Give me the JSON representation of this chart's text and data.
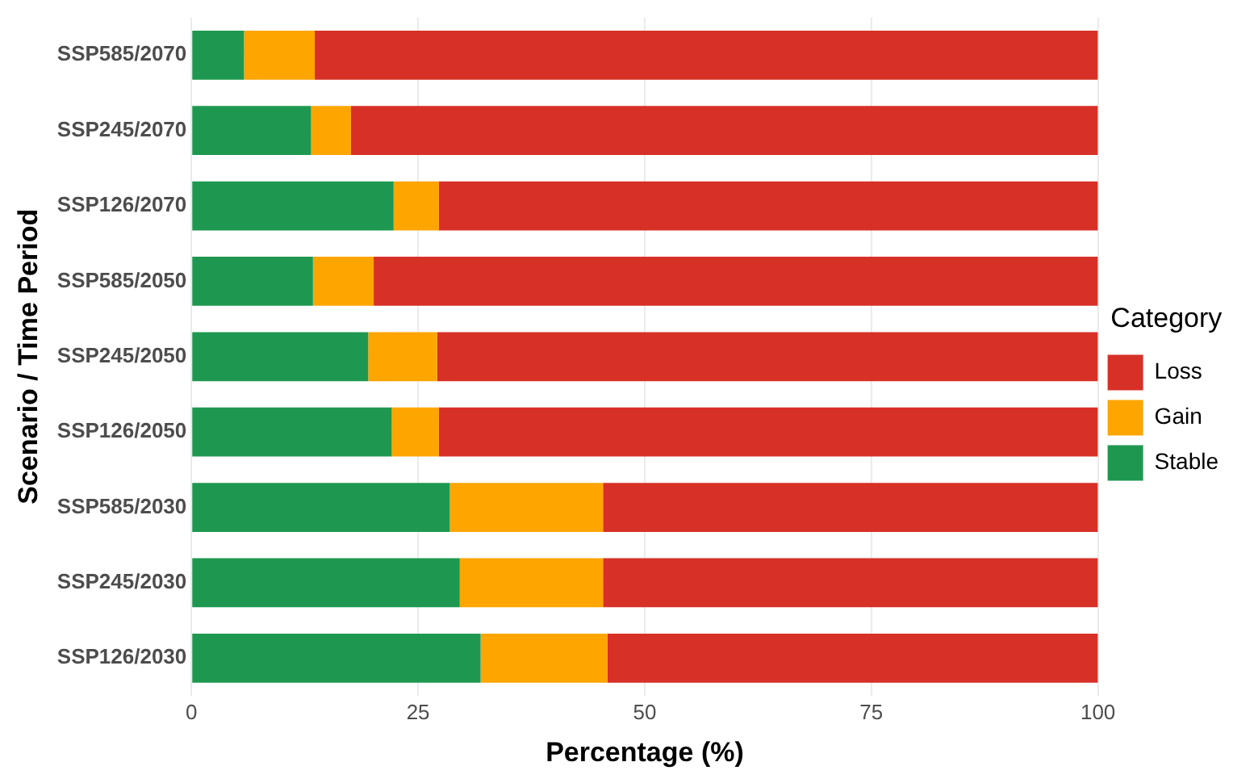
{
  "chart_data": {
    "type": "bar",
    "orientation": "horizontal",
    "stacked": true,
    "xlabel": "Percentage (%)",
    "ylabel": "Scenario / Time Period",
    "legend_title": "Category",
    "legend": "right",
    "grid": true,
    "categories": [
      "SSP585/2070",
      "SSP245/2070",
      "SSP126/2070",
      "SSP585/2050",
      "SSP245/2050",
      "SSP126/2050",
      "SSP585/2030",
      "SSP245/2030",
      "SSP126/2030"
    ],
    "xlim": [
      0,
      100
    ],
    "xticks": [
      0,
      25,
      50,
      75,
      100
    ],
    "series": [
      {
        "name": "Stable",
        "color": "#1e9850",
        "values": [
          5.8,
          13.2,
          22.3,
          13.4,
          19.5,
          22.1,
          28.5,
          29.6,
          31.9
        ]
      },
      {
        "name": "Gain",
        "color": "#ffa500",
        "values": [
          7.8,
          4.4,
          5.0,
          6.7,
          7.6,
          5.2,
          16.9,
          15.8,
          14.0
        ]
      },
      {
        "name": "Loss",
        "color": "#d73027",
        "values": [
          86.4,
          82.4,
          72.7,
          79.9,
          72.9,
          72.7,
          54.6,
          54.6,
          54.1
        ]
      }
    ]
  }
}
